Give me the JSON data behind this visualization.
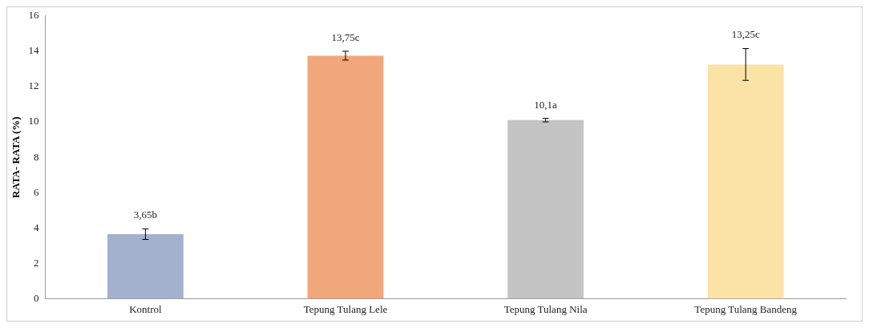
{
  "chart_data": {
    "type": "bar",
    "ylabel": "RATA- RATA (%)",
    "categories": [
      "Kontrol",
      "Tepung Tulang Lele",
      "Tepung Tulang Nila",
      "Tepung Tulang Bandeng"
    ],
    "values": [
      3.65,
      13.75,
      10.1,
      13.25
    ],
    "colors": [
      "#a3b1cf",
      "#f2a77a",
      "#c4c4c4",
      "#fbe3a6"
    ],
    "errors": [
      0.3,
      0.25,
      0.1,
      0.9
    ],
    "value_labels": [
      "3,65b",
      "13,75c",
      "10,1a",
      "13,25c"
    ],
    "ylim": [
      0,
      16
    ],
    "yticks": [
      0,
      2,
      4,
      6,
      8,
      10,
      12,
      14,
      16
    ],
    "grid": false,
    "legend": false
  }
}
